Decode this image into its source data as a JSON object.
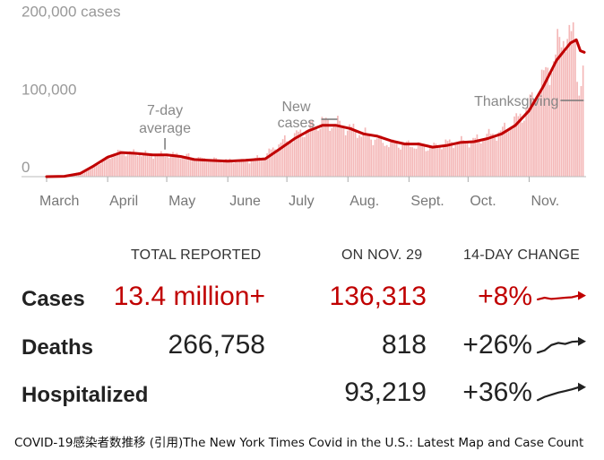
{
  "chart_data": {
    "type": "bar",
    "title": "",
    "xlabel": "",
    "ylabel": "",
    "ylim": [
      0,
      210000
    ],
    "yticks": [
      "0",
      "100,000",
      "200,000 cases"
    ],
    "xticks": [
      "March",
      "April",
      "May",
      "June",
      "July",
      "Aug.",
      "Sept.",
      "Oct.",
      "Nov."
    ],
    "series": [
      {
        "name": "Daily cases",
        "role": "bars",
        "color": "#f4b8b8",
        "points": [
          [
            "2020-03-01",
            0
          ],
          [
            "2020-03-10",
            800
          ],
          [
            "2020-03-20",
            7000
          ],
          [
            "2020-03-25",
            14000
          ],
          [
            "2020-04-01",
            25000
          ],
          [
            "2020-04-08",
            32000
          ],
          [
            "2020-04-12",
            31000
          ],
          [
            "2020-04-24",
            28000
          ],
          [
            "2020-05-08",
            28000
          ],
          [
            "2020-05-20",
            22000
          ],
          [
            "2020-06-01",
            21000
          ],
          [
            "2020-06-10",
            19000
          ],
          [
            "2020-06-20",
            27000
          ],
          [
            "2020-06-27",
            42000
          ],
          [
            "2020-07-05",
            52000
          ],
          [
            "2020-07-12",
            62000
          ],
          [
            "2020-07-19",
            70000
          ],
          [
            "2020-07-26",
            68000
          ],
          [
            "2020-08-02",
            62000
          ],
          [
            "2020-08-09",
            55000
          ],
          [
            "2020-08-16",
            47000
          ],
          [
            "2020-08-23",
            42000
          ],
          [
            "2020-08-30",
            41000
          ],
          [
            "2020-09-06",
            40000
          ],
          [
            "2020-09-13",
            37000
          ],
          [
            "2020-09-20",
            43000
          ],
          [
            "2020-09-27",
            44000
          ],
          [
            "2020-10-04",
            46000
          ],
          [
            "2020-10-11",
            52000
          ],
          [
            "2020-10-18",
            57000
          ],
          [
            "2020-10-25",
            70000
          ],
          [
            "2020-11-01",
            88000
          ],
          [
            "2020-11-08",
            122000
          ],
          [
            "2020-11-15",
            155000
          ],
          [
            "2020-11-20",
            190000
          ],
          [
            "2020-11-22",
            175000
          ],
          [
            "2020-11-25",
            180000
          ],
          [
            "2020-11-27",
            110000
          ],
          [
            "2020-11-29",
            136313
          ]
        ]
      },
      {
        "name": "7-day average",
        "role": "line",
        "color": "#c00000",
        "points": [
          [
            "2020-03-01",
            0
          ],
          [
            "2020-03-10",
            500
          ],
          [
            "2020-03-18",
            4000
          ],
          [
            "2020-03-25",
            14000
          ],
          [
            "2020-04-01",
            25000
          ],
          [
            "2020-04-08",
            31000
          ],
          [
            "2020-04-15",
            30000
          ],
          [
            "2020-04-24",
            28000
          ],
          [
            "2020-05-01",
            28000
          ],
          [
            "2020-05-08",
            26000
          ],
          [
            "2020-05-15",
            22000
          ],
          [
            "2020-05-22",
            21000
          ],
          [
            "2020-06-01",
            20000
          ],
          [
            "2020-06-10",
            21000
          ],
          [
            "2020-06-20",
            23000
          ],
          [
            "2020-06-27",
            35000
          ],
          [
            "2020-07-05",
            49000
          ],
          [
            "2020-07-12",
            59000
          ],
          [
            "2020-07-19",
            66000
          ],
          [
            "2020-07-26",
            66000
          ],
          [
            "2020-08-02",
            62000
          ],
          [
            "2020-08-09",
            55000
          ],
          [
            "2020-08-16",
            52000
          ],
          [
            "2020-08-23",
            46000
          ],
          [
            "2020-08-30",
            42000
          ],
          [
            "2020-09-06",
            42000
          ],
          [
            "2020-09-13",
            38000
          ],
          [
            "2020-09-20",
            40000
          ],
          [
            "2020-09-27",
            44000
          ],
          [
            "2020-10-04",
            45000
          ],
          [
            "2020-10-11",
            49000
          ],
          [
            "2020-10-18",
            55000
          ],
          [
            "2020-10-25",
            66000
          ],
          [
            "2020-11-01",
            85000
          ],
          [
            "2020-11-08",
            115000
          ],
          [
            "2020-11-15",
            150000
          ],
          [
            "2020-11-22",
            172000
          ],
          [
            "2020-11-25",
            176000
          ],
          [
            "2020-11-27",
            162000
          ],
          [
            "2020-11-29",
            160000
          ]
        ]
      }
    ],
    "annotations": [
      {
        "lines": [
          "7-day",
          "average"
        ],
        "x": "2020-05-01"
      },
      {
        "lines": [
          "New",
          "cases"
        ],
        "x": "2020-07-13"
      },
      {
        "lines": [
          "Thanksgiving"
        ],
        "x": "2020-11-26"
      }
    ],
    "grid": false
  },
  "stats": {
    "headers": {
      "total": "TOTAL REPORTED",
      "day": "ON NOV. 29",
      "change": "14-DAY CHANGE"
    },
    "rows": [
      {
        "label": "Cases",
        "total": "13.4 million+",
        "day": "136,313",
        "change": "+8%",
        "highlight": true,
        "spark": [
          0.42,
          0.5,
          0.44,
          0.47,
          0.5,
          0.52,
          0.6
        ]
      },
      {
        "label": "Deaths",
        "total": "266,758",
        "day": "818",
        "change": "+26%",
        "highlight": false,
        "spark": [
          0.2,
          0.3,
          0.55,
          0.65,
          0.6,
          0.7,
          0.72
        ]
      },
      {
        "label": "Hospitalized",
        "total": "",
        "day": "93,219",
        "change": "+36%",
        "highlight": false,
        "spark": [
          0.2,
          0.35,
          0.45,
          0.55,
          0.62,
          0.7,
          0.8
        ]
      }
    ]
  },
  "caption": "COVID-19感染者数推移 (引用)The New York Times Covid in the U.S.: Latest Map and Case Count",
  "colors": {
    "accent": "#c00000",
    "bar": "#f4b8b8",
    "text": "#222222"
  }
}
